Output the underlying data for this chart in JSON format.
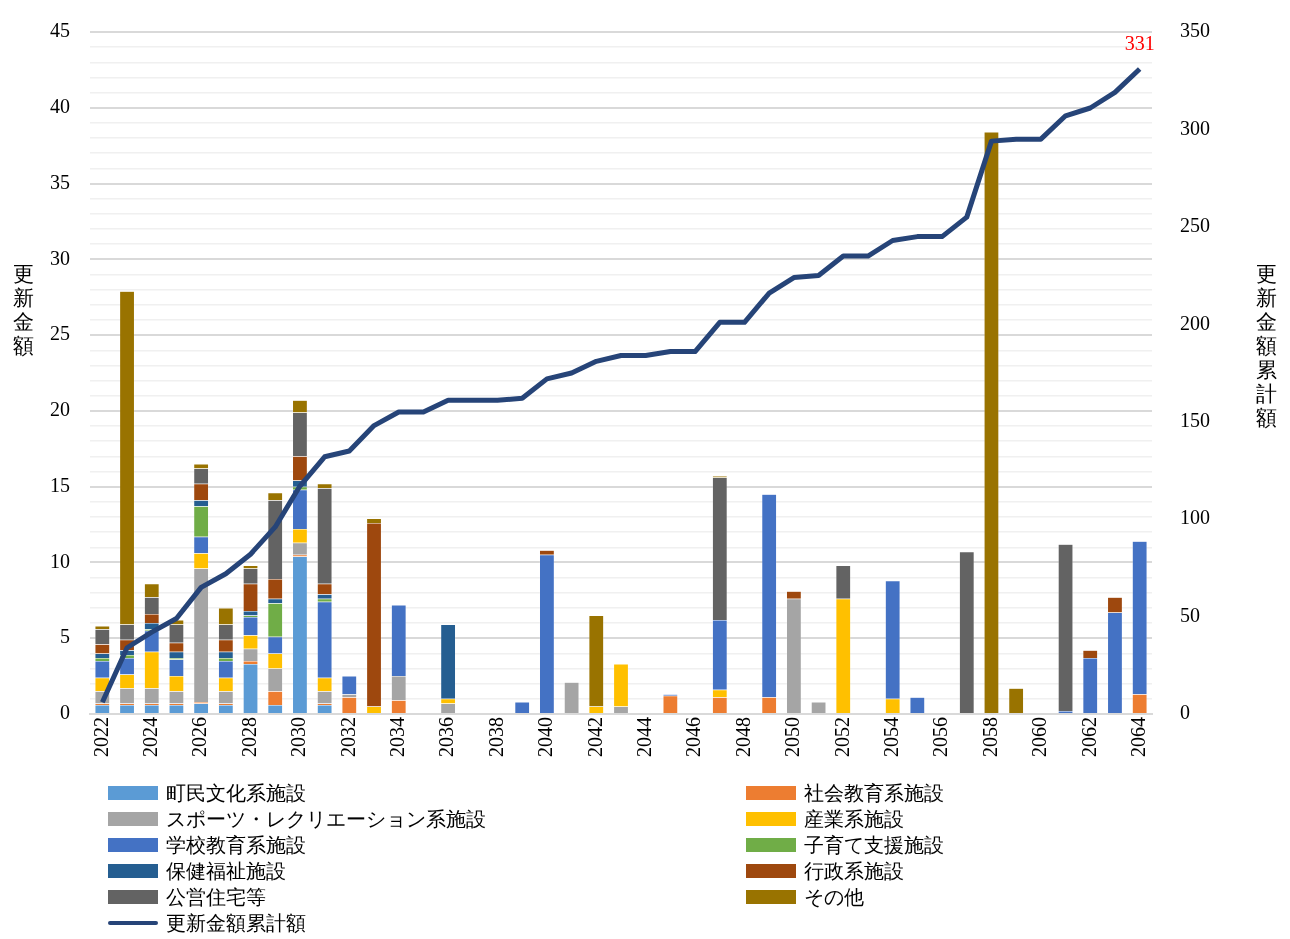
{
  "chart_data": {
    "type": "bar",
    "stacked": true,
    "ylabel": "更新金額",
    "y2label": "更新金額累計額",
    "legend": "bottom",
    "grid": "y",
    "categories": [
      "2022",
      null,
      "2024",
      null,
      "2026",
      null,
      "2028",
      null,
      "2030",
      null,
      "2032",
      null,
      "2034",
      null,
      "2036",
      null,
      "2038",
      null,
      "2040",
      null,
      "2042",
      null,
      "2044",
      null,
      "2046",
      null,
      "2048",
      null,
      "2050",
      null,
      "2052",
      null,
      "2054",
      null,
      "2056",
      null,
      "2058",
      null,
      "2060",
      null,
      "2062",
      null,
      "2064"
    ],
    "ylim": [
      0,
      45
    ],
    "yticks": [
      0,
      {
        "value": 1,
        "label": null
      },
      {
        "value": 2,
        "label": null
      },
      {
        "value": 3,
        "label": null
      },
      {
        "value": 4,
        "label": null
      },
      5,
      {
        "value": 6,
        "label": null
      },
      {
        "value": 7,
        "label": null
      },
      {
        "value": 8,
        "label": null
      },
      {
        "value": 9,
        "label": null
      },
      10,
      {
        "value": 11,
        "label": null
      },
      {
        "value": 12,
        "label": null
      },
      {
        "value": 13,
        "label": null
      },
      {
        "value": 14,
        "label": null
      },
      15,
      {
        "value": 16,
        "label": null
      },
      {
        "value": 17,
        "label": null
      },
      {
        "value": 18,
        "label": null
      },
      {
        "value": 19,
        "label": null
      },
      20,
      {
        "value": 21,
        "label": null
      },
      {
        "value": 22,
        "label": null
      },
      {
        "value": 23,
        "label": null
      },
      {
        "value": 24,
        "label": null
      },
      25,
      {
        "value": 26,
        "label": null
      },
      {
        "value": 27,
        "label": null
      },
      {
        "value": 28,
        "label": null
      },
      {
        "value": 29,
        "label": null
      },
      30,
      {
        "value": 31,
        "label": null
      },
      {
        "value": 32,
        "label": null
      },
      {
        "value": 33,
        "label": null
      },
      {
        "value": 34,
        "label": null
      },
      35,
      {
        "value": 36,
        "label": null
      },
      {
        "value": 37,
        "label": null
      },
      {
        "value": 38,
        "label": null
      },
      {
        "value": 39,
        "label": null
      },
      40,
      {
        "value": 41,
        "label": null
      },
      {
        "value": 42,
        "label": null
      },
      {
        "value": 43,
        "label": null
      },
      {
        "value": 44,
        "label": null
      },
      45
    ],
    "y2lim": [
      0,
      350
    ],
    "y2ticks": [
      0,
      50,
      100,
      150,
      200,
      250,
      300,
      350
    ],
    "series": [
      {
        "name": "町民文化系施設",
        "color": "#5b9bd5",
        "values": [
          0.6,
          0.6,
          0.6,
          0.6,
          0.7,
          0.6,
          3.3,
          0.6,
          10.4,
          0.6,
          null,
          null,
          null,
          null,
          null,
          null,
          null,
          null,
          null,
          null,
          null,
          null,
          null,
          null,
          null,
          null,
          null,
          null,
          null,
          null,
          null,
          null,
          null,
          null,
          null,
          null,
          null,
          null,
          null,
          null,
          null,
          null,
          null
        ]
      },
      {
        "name": "社会教育系施設",
        "color": "#ed7d31",
        "values": [
          0.1,
          0.1,
          0.1,
          0.1,
          0.1,
          0.1,
          0.2,
          0.9,
          0.1,
          0.1,
          1.1,
          null,
          0.9,
          null,
          null,
          null,
          null,
          null,
          null,
          null,
          null,
          null,
          null,
          1.2,
          null,
          1.1,
          null,
          1.1,
          null,
          null,
          null,
          null,
          null,
          null,
          null,
          null,
          null,
          null,
          null,
          null,
          null,
          null,
          1.3
        ]
      },
      {
        "name": "スポーツ・レクリエーション系施設",
        "color": "#a5a5a5",
        "values": [
          0.8,
          1.0,
          1.0,
          0.8,
          8.8,
          0.8,
          0.8,
          1.5,
          0.8,
          0.8,
          0.2,
          null,
          1.6,
          null,
          0.7,
          null,
          null,
          null,
          null,
          2.1,
          null,
          0.5,
          null,
          null,
          null,
          null,
          null,
          null,
          7.6,
          0.8,
          null,
          null,
          null,
          null,
          null,
          null,
          null,
          null,
          null,
          null,
          null,
          null,
          null
        ]
      },
      {
        "name": "産業系施設",
        "color": "#ffc000",
        "values": [
          0.9,
          0.9,
          2.4,
          1.0,
          1.0,
          0.9,
          0.9,
          1.0,
          0.9,
          0.9,
          null,
          0.5,
          null,
          null,
          0.3,
          null,
          null,
          null,
          null,
          null,
          0.5,
          2.8,
          null,
          null,
          null,
          0.5,
          null,
          null,
          null,
          null,
          7.6,
          null,
          1.0,
          null,
          null,
          null,
          null,
          null,
          null,
          null,
          null,
          null,
          null
        ]
      },
      {
        "name": "学校教育系施設",
        "color": "#4472c4",
        "values": [
          1.1,
          1.1,
          1.4,
          1.1,
          1.1,
          1.1,
          1.2,
          1.1,
          2.6,
          5.0,
          1.2,
          null,
          4.7,
          null,
          null,
          null,
          null,
          0.8,
          10.5,
          null,
          null,
          null,
          null,
          0.1,
          null,
          4.6,
          null,
          13.4,
          null,
          null,
          null,
          null,
          7.8,
          1.1,
          null,
          null,
          null,
          null,
          null,
          0.2,
          3.7,
          6.7,
          10.1
        ]
      },
      {
        "name": "子育て支援施設",
        "color": "#70ad47",
        "values": [
          0.2,
          0.2,
          0.1,
          0.1,
          2.0,
          0.2,
          0.1,
          2.2,
          0.2,
          0.2,
          null,
          null,
          null,
          null,
          null,
          null,
          null,
          null,
          null,
          null,
          null,
          null,
          null,
          null,
          null,
          null,
          null,
          null,
          null,
          null,
          null,
          null,
          null,
          null,
          null,
          null,
          null,
          null,
          null,
          null,
          null,
          null,
          null
        ]
      },
      {
        "name": "保健福祉施設",
        "color": "#255e91",
        "values": [
          0.3,
          0.3,
          0.4,
          0.4,
          0.4,
          0.4,
          0.3,
          0.3,
          0.4,
          0.3,
          null,
          null,
          null,
          null,
          4.9,
          null,
          null,
          null,
          null,
          null,
          null,
          null,
          null,
          null,
          null,
          null,
          null,
          null,
          null,
          null,
          null,
          null,
          null,
          null,
          null,
          null,
          null,
          null,
          null,
          null,
          null,
          null,
          null
        ]
      },
      {
        "name": "行政系施設",
        "color": "#9e480e",
        "values": [
          0.6,
          0.7,
          0.6,
          0.6,
          1.1,
          0.8,
          1.8,
          1.3,
          1.6,
          0.7,
          null,
          12.1,
          null,
          null,
          null,
          null,
          null,
          null,
          0.3,
          null,
          null,
          null,
          null,
          null,
          null,
          null,
          null,
          null,
          0.5,
          null,
          null,
          null,
          null,
          null,
          null,
          null,
          null,
          null,
          null,
          null,
          0.5,
          1.0,
          null
        ]
      },
      {
        "name": "公営住宅等",
        "color": "#636363",
        "values": [
          1.0,
          1.0,
          1.1,
          1.2,
          1.0,
          1.0,
          1.0,
          5.2,
          2.9,
          6.3,
          null,
          null,
          null,
          null,
          null,
          null,
          null,
          null,
          null,
          null,
          null,
          null,
          null,
          null,
          null,
          9.4,
          null,
          null,
          null,
          null,
          2.2,
          null,
          null,
          null,
          null,
          10.7,
          null,
          null,
          null,
          11.0,
          null,
          null,
          null
        ]
      },
      {
        "name": "その他",
        "color": "#997300",
        "values": [
          0.2,
          22.0,
          0.9,
          0.3,
          0.3,
          1.1,
          0.2,
          0.5,
          0.8,
          0.3,
          null,
          0.3,
          null,
          null,
          null,
          null,
          null,
          null,
          null,
          null,
          6.0,
          null,
          null,
          null,
          null,
          0.1,
          null,
          null,
          null,
          null,
          null,
          null,
          null,
          null,
          null,
          null,
          38.4,
          1.7,
          null,
          null,
          null,
          null,
          null
        ]
      },
      {
        "name": "更新金額累計額",
        "type": "line",
        "axis": "y2",
        "color": "#264478",
        "values": [
          6,
          34,
          42,
          49,
          65,
          72,
          82,
          96,
          117,
          132,
          135,
          148,
          155,
          155,
          161,
          161,
          161,
          162,
          172,
          175,
          181,
          184,
          184,
          186,
          186,
          201,
          201,
          216,
          224,
          225,
          235,
          235,
          243,
          245,
          245,
          255,
          294,
          295,
          295,
          307,
          311,
          319,
          331
        ],
        "value_labels": [
          null,
          null,
          null,
          null,
          null,
          null,
          null,
          null,
          null,
          null,
          null,
          null,
          null,
          null,
          null,
          null,
          null,
          null,
          null,
          null,
          null,
          null,
          null,
          null,
          null,
          null,
          null,
          null,
          null,
          null,
          null,
          null,
          null,
          null,
          null,
          null,
          null,
          null,
          null,
          null,
          null,
          null,
          "331"
        ]
      }
    ]
  }
}
